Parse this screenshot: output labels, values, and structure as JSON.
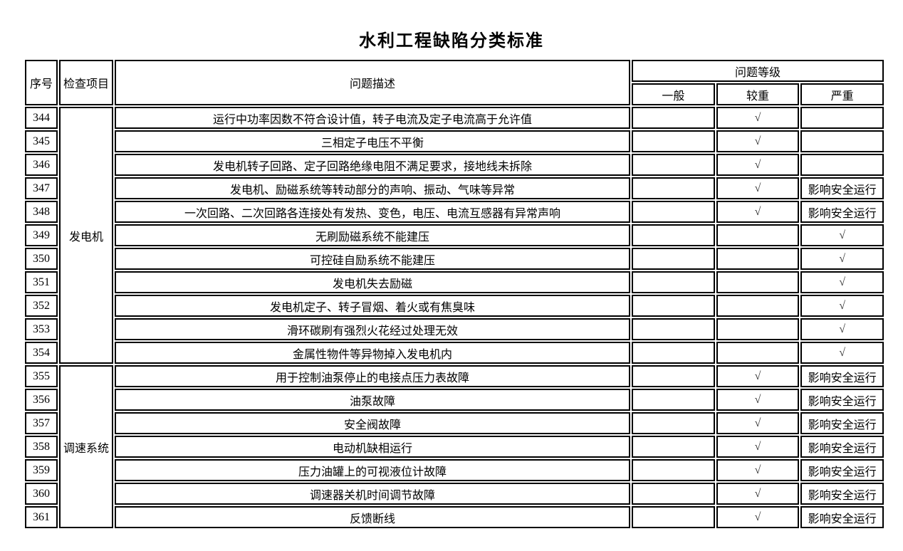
{
  "title": "水利工程缺陷分类标准",
  "table": {
    "headers": {
      "index": "序号",
      "category": "检查项目",
      "description": "问题描述",
      "level_group": "问题等级",
      "levels": [
        "一般",
        "较重",
        "严重"
      ]
    },
    "check_mark": "√",
    "groups": [
      {
        "category": "发电机",
        "rows": [
          {
            "no": "344",
            "description": "运行中功率因数不符合设计值，转子电流及定子电流高于允许值",
            "levels": [
              "",
              "√",
              ""
            ]
          },
          {
            "no": "345",
            "description": "三相定子电压不平衡",
            "levels": [
              "",
              "√",
              ""
            ]
          },
          {
            "no": "346",
            "description": "发电机转子回路、定子回路绝缘电阻不满足要求，接地线未拆除",
            "levels": [
              "",
              "√",
              ""
            ]
          },
          {
            "no": "347",
            "description": "发电机、励磁系统等转动部分的声响、振动、气味等异常",
            "levels": [
              "",
              "√",
              "影响安全运行"
            ]
          },
          {
            "no": "348",
            "description": "一次回路、二次回路各连接处有发热、变色，电压、电流互感器有异常声响",
            "levels": [
              "",
              "√",
              "影响安全运行"
            ]
          },
          {
            "no": "349",
            "description": "无刷励磁系统不能建压",
            "levels": [
              "",
              "",
              "√"
            ]
          },
          {
            "no": "350",
            "description": "可控硅自励系统不能建压",
            "levels": [
              "",
              "",
              "√"
            ]
          },
          {
            "no": "351",
            "description": "发电机失去励磁",
            "levels": [
              "",
              "",
              "√"
            ]
          },
          {
            "no": "352",
            "description": "发电机定子、转子冒烟、着火或有焦臭味",
            "levels": [
              "",
              "",
              "√"
            ]
          },
          {
            "no": "353",
            "description": "滑环碳刷有强烈火花经过处理无效",
            "levels": [
              "",
              "",
              "√"
            ]
          },
          {
            "no": "354",
            "description": "金属性物件等异物掉入发电机内",
            "levels": [
              "",
              "",
              "√"
            ]
          }
        ]
      },
      {
        "category": "调速系统",
        "rows": [
          {
            "no": "355",
            "description": "用于控制油泵停止的电接点压力表故障",
            "levels": [
              "",
              "√",
              "影响安全运行"
            ]
          },
          {
            "no": "356",
            "description": "油泵故障",
            "levels": [
              "",
              "√",
              "影响安全运行"
            ]
          },
          {
            "no": "357",
            "description": "安全阀故障",
            "levels": [
              "",
              "√",
              "影响安全运行"
            ]
          },
          {
            "no": "358",
            "description": "电动机缺相运行",
            "levels": [
              "",
              "√",
              "影响安全运行"
            ]
          },
          {
            "no": "359",
            "description": "压力油罐上的可视液位计故障",
            "levels": [
              "",
              "√",
              "影响安全运行"
            ]
          },
          {
            "no": "360",
            "description": "调速器关机时间调节故障",
            "levels": [
              "",
              "√",
              "影响安全运行"
            ]
          },
          {
            "no": "361",
            "description": "反馈断线",
            "levels": [
              "",
              "√",
              "影响安全运行"
            ]
          }
        ]
      }
    ]
  }
}
